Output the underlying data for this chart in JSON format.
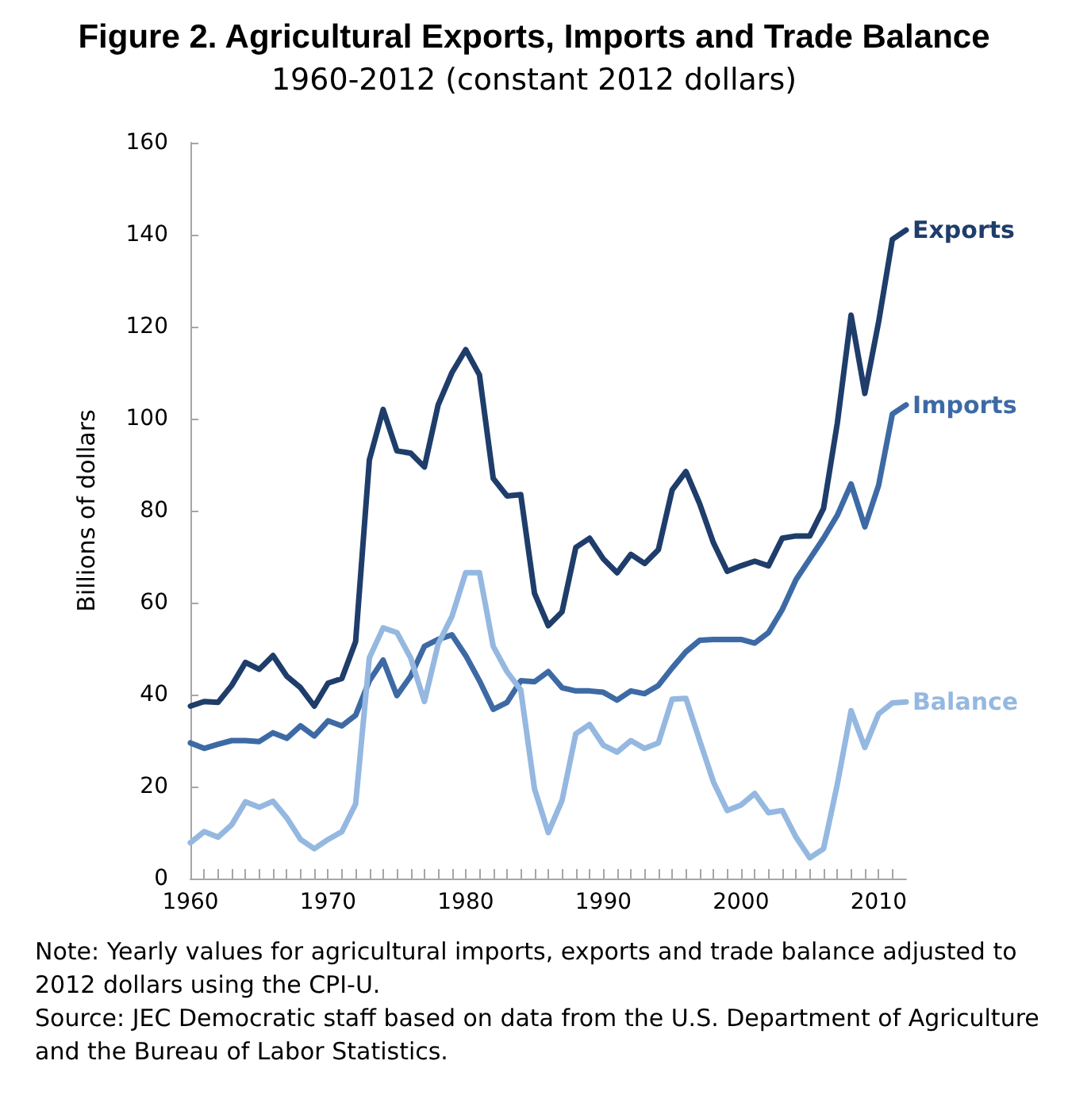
{
  "chart_data": {
    "type": "line",
    "title": "Figure 2. Agricultural Exports, Imports and Trade Balance",
    "subtitle": "1960-2012 (constant 2012 dollars)",
    "ylabel": "Billions of dollars",
    "x": [
      1960,
      1961,
      1962,
      1963,
      1964,
      1965,
      1966,
      1967,
      1968,
      1969,
      1970,
      1971,
      1972,
      1973,
      1974,
      1975,
      1976,
      1977,
      1978,
      1979,
      1980,
      1981,
      1982,
      1983,
      1984,
      1985,
      1986,
      1987,
      1988,
      1989,
      1990,
      1991,
      1992,
      1993,
      1994,
      1995,
      1996,
      1997,
      1998,
      1999,
      2000,
      2001,
      2002,
      2003,
      2004,
      2005,
      2006,
      2007,
      2008,
      2009,
      2010,
      2011,
      2012
    ],
    "series": [
      {
        "name": "Exports",
        "color": "#1f3d6b",
        "values": [
          37.5,
          38.5,
          38.3,
          42,
          47,
          45.5,
          48.5,
          44,
          41.5,
          37.5,
          42.5,
          43.5,
          51.5,
          91,
          102,
          93,
          92.5,
          89.5,
          103,
          110,
          115,
          109.5,
          87,
          83.2,
          83.5,
          62,
          55,
          58,
          72,
          74,
          69.5,
          66.5,
          70.5,
          68.5,
          71.5,
          84.5,
          88.5,
          81.5,
          73,
          66.8,
          68,
          69,
          68,
          74,
          74.5,
          74.5,
          80.5,
          99,
          122.5,
          105.5,
          121,
          139,
          141
        ]
      },
      {
        "name": "Imports",
        "color": "#3d6aa5",
        "values": [
          29.5,
          28.3,
          29.2,
          30,
          30,
          29.8,
          31.7,
          30.5,
          33.2,
          31,
          34.3,
          33.2,
          35.5,
          43,
          47.5,
          39.8,
          44,
          50.5,
          52,
          53,
          48.5,
          43,
          36.8,
          38.3,
          43,
          42.8,
          45,
          41.5,
          40.8,
          40.8,
          40.5,
          38.8,
          40.8,
          40.2,
          42,
          45.8,
          49.3,
          51.8,
          52,
          52,
          52,
          51.2,
          53.5,
          58.5,
          65,
          69.5,
          74,
          79,
          85.8,
          76.5,
          85.5,
          101,
          103
        ]
      },
      {
        "name": "Balance",
        "color": "#95b8e0",
        "values": [
          7.8,
          10.2,
          9,
          11.7,
          16.7,
          15.5,
          16.8,
          13.2,
          8.5,
          6.5,
          8.5,
          10.2,
          16.2,
          48,
          54.5,
          53.5,
          48,
          38.5,
          51,
          57,
          66.5,
          66.5,
          50.5,
          45,
          41,
          19.5,
          10,
          17,
          31.5,
          33.5,
          29,
          27.5,
          30,
          28.3,
          29.5,
          39,
          39.2,
          30,
          21,
          14.8,
          16,
          18.5,
          14.3,
          14.8,
          9,
          4.5,
          6.5,
          20.5,
          36.5,
          28.5,
          35.8,
          38.2,
          38.4
        ]
      }
    ],
    "xlim": [
      1960,
      2012
    ],
    "xticks": [
      1960,
      1970,
      1980,
      1990,
      2000,
      2010
    ],
    "ylim": [
      0,
      160
    ],
    "yticks": [
      0,
      20,
      40,
      60,
      80,
      100,
      120,
      140,
      160
    ],
    "grid": false,
    "legend": false,
    "marker": "none",
    "line_style": "solid",
    "annotations": [
      "Note: Yearly values for agricultural imports, exports and trade balance adjusted to 2012 dollars using the CPI-U.",
      "Source: JEC Democratic staff based on data from the U.S. Department of Agriculture and the Bureau of Labor Statistics."
    ]
  }
}
